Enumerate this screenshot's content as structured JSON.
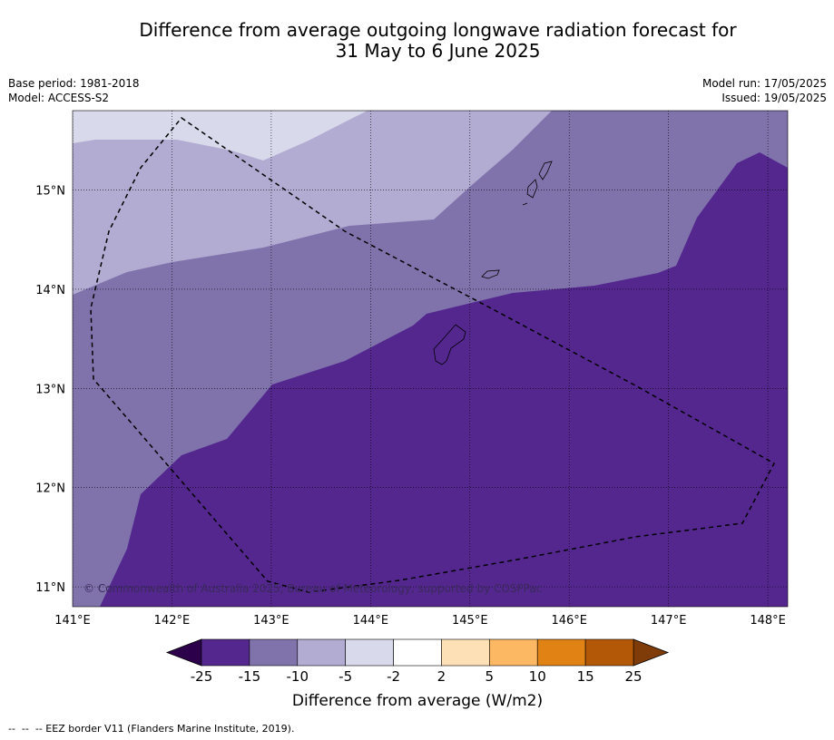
{
  "header": {
    "title_line1": "Difference from average outgoing longwave radiation forecast for",
    "title_line2": "31 May to 6 June 2025",
    "base_period": "Base period: 1981-2018",
    "model": "Model: ACCESS-S2",
    "model_run": "Model run: 17/05/2025",
    "issued": "Issued: 19/05/2025"
  },
  "map": {
    "copyright": "© Commonwealth of Australia 2025, Bureau of Meteorology, supported by COSPPac"
  },
  "footer": {
    "legend_text": "--  --  -- EEZ border V11 (Flanders Marine Institute, 2019)."
  },
  "chart_data": {
    "type": "heatmap",
    "title": "Difference from average outgoing longwave radiation forecast for 31 May to 6 June 2025",
    "x_axis": {
      "label": "",
      "range": [
        141.0,
        148.2
      ],
      "ticks": [
        141,
        142,
        143,
        144,
        145,
        146,
        147,
        148
      ],
      "tick_labels": [
        "141°E",
        "142°E",
        "143°E",
        "144°E",
        "145°E",
        "146°E",
        "147°E",
        "148°E"
      ]
    },
    "y_axis": {
      "label": "",
      "range": [
        10.8,
        15.8
      ],
      "ticks": [
        11,
        12,
        13,
        14,
        15
      ],
      "tick_labels": [
        "11°N",
        "12°N",
        "13°N",
        "14°N",
        "15°N"
      ]
    },
    "grid": true,
    "colorbar": {
      "label": "Difference from average (W/m2)",
      "bounds": [
        -25,
        -15,
        -10,
        -5,
        -2,
        2,
        5,
        10,
        15,
        25
      ],
      "tick_labels": [
        "-25",
        "-15",
        "-10",
        "-5",
        "-2",
        "2",
        "5",
        "10",
        "15",
        "25"
      ],
      "colors": [
        "#54278f",
        "#8073ac",
        "#b2abd2",
        "#d8daeb",
        "#ffffff",
        "#fee0b6",
        "#fdb863",
        "#e08214",
        "#b35806"
      ],
      "under_color": "#2d004b",
      "over_color": "#7f3b08"
    },
    "regions": [
      {
        "range": "-5 to -2",
        "color": "#d8daeb",
        "location": "top-left"
      },
      {
        "range": "-10 to -5",
        "color": "#b2abd2",
        "location": "upper band, northwest to north"
      },
      {
        "range": "-15 to -10",
        "color": "#8073ac",
        "location": "middle band and west"
      },
      {
        "range": "below -15",
        "color": "#54278f",
        "location": "south and east"
      }
    ]
  }
}
